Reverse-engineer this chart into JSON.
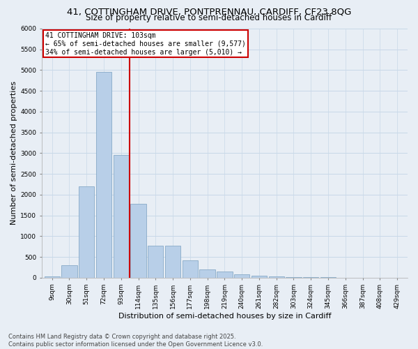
{
  "title1": "41, COTTINGHAM DRIVE, PONTPRENNAU, CARDIFF, CF23 8QG",
  "title2": "Size of property relative to semi-detached houses in Cardiff",
  "xlabel": "Distribution of semi-detached houses by size in Cardiff",
  "ylabel": "Number of semi-detached properties",
  "footer1": "Contains HM Land Registry data © Crown copyright and database right 2025.",
  "footer2": "Contains public sector information licensed under the Open Government Licence v3.0.",
  "bar_labels": [
    "9sqm",
    "30sqm",
    "51sqm",
    "72sqm",
    "93sqm",
    "114sqm",
    "135sqm",
    "156sqm",
    "177sqm",
    "198sqm",
    "219sqm",
    "240sqm",
    "261sqm",
    "282sqm",
    "303sqm",
    "324sqm",
    "345sqm",
    "366sqm",
    "387sqm",
    "408sqm",
    "429sqm"
  ],
  "bar_values": [
    25,
    300,
    2200,
    4950,
    2960,
    1780,
    780,
    780,
    420,
    195,
    155,
    90,
    55,
    35,
    20,
    12,
    8,
    4,
    2,
    1,
    1
  ],
  "bar_color": "#b8cfe8",
  "bar_edge_color": "#7aa0c0",
  "grid_color": "#c8d8e8",
  "background_color": "#e8eef5",
  "annotation_text1": "41 COTTINGHAM DRIVE: 103sqm",
  "annotation_text2": "← 65% of semi-detached houses are smaller (9,577)",
  "annotation_text3": "34% of semi-detached houses are larger (5,010) →",
  "annotation_box_color": "#ffffff",
  "annotation_box_edge": "#cc0000",
  "vline_color": "#cc0000",
  "vline_x": 4.48,
  "ylim": [
    0,
    6000
  ],
  "yticks": [
    0,
    500,
    1000,
    1500,
    2000,
    2500,
    3000,
    3500,
    4000,
    4500,
    5000,
    5500,
    6000
  ],
  "title_fontsize": 9.5,
  "subtitle_fontsize": 8.5,
  "axis_label_fontsize": 8,
  "tick_fontsize": 6.5,
  "annotation_fontsize": 7,
  "footer_fontsize": 6
}
